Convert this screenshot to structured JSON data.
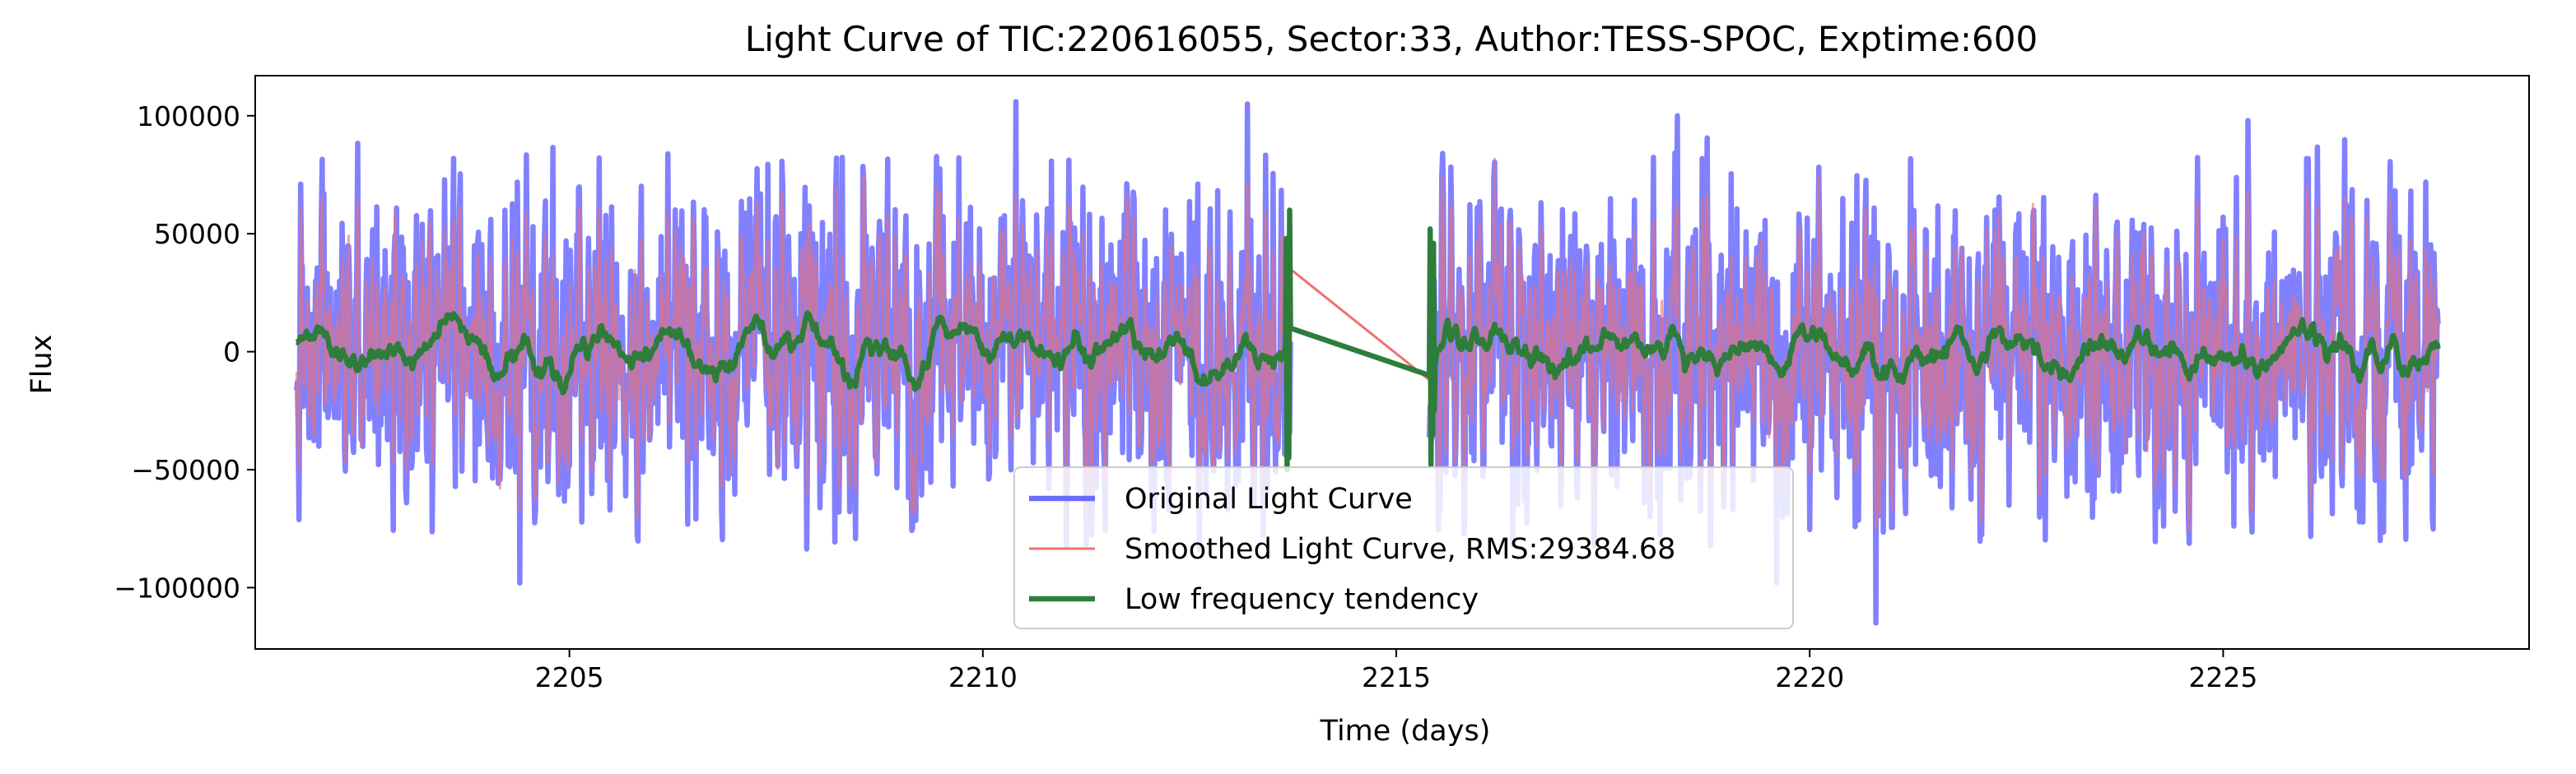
{
  "chart_data": {
    "type": "line",
    "title": "Light Curve of TIC:220616055, Sector:33, Author:TESS-SPOC, Exptime:600",
    "xlabel": "Time (days)",
    "ylabel": "Flux",
    "xlim": [
      2201.2,
      2228.7
    ],
    "ylim": [
      -126000,
      117000
    ],
    "xticks": [
      2205,
      2210,
      2215,
      2220,
      2225
    ],
    "yticks": [
      -100000,
      -50000,
      0,
      50000,
      100000
    ],
    "xtick_labels": [
      "2205",
      "2210",
      "2215",
      "2220",
      "2225"
    ],
    "ytick_labels": [
      "−100000",
      "−50000",
      "0",
      "50000",
      "100000"
    ],
    "grid": false,
    "legend_position": "bottom-center",
    "segments": [
      [
        2201.7,
        2213.72
      ],
      [
        2215.4,
        2227.6
      ]
    ],
    "gap": [
      2213.72,
      2215.4
    ],
    "series": [
      {
        "name": "Original Light Curve",
        "color": "#6b6bff",
        "amplitude_range": [
          -115000,
          106000
        ],
        "peaks": [
          {
            "x": 2204.4,
            "y": -98000
          },
          {
            "x": 2210.4,
            "y": 106000
          },
          {
            "x": 2213.2,
            "y": 105000
          },
          {
            "x": 2218.4,
            "y": 100000
          },
          {
            "x": 2219.6,
            "y": -98000
          },
          {
            "x": 2220.8,
            "y": -115000
          },
          {
            "x": 2225.3,
            "y": 98000
          },
          {
            "x": 2226.9,
            "y": -80000
          }
        ]
      },
      {
        "name": "Smoothed Light Curve, RMS:29384.68",
        "color": "#f07070",
        "gap_bridge": [
          [
            2213.72,
            35000
          ],
          [
            2215.4,
            -12000
          ]
        ]
      },
      {
        "name": "Low frequency tendency",
        "color": "#2e7d3a",
        "range": [
          -15000,
          18000
        ],
        "gap_bridge": [
          [
            2213.72,
            10000
          ],
          [
            2215.4,
            -10000
          ]
        ]
      }
    ]
  }
}
